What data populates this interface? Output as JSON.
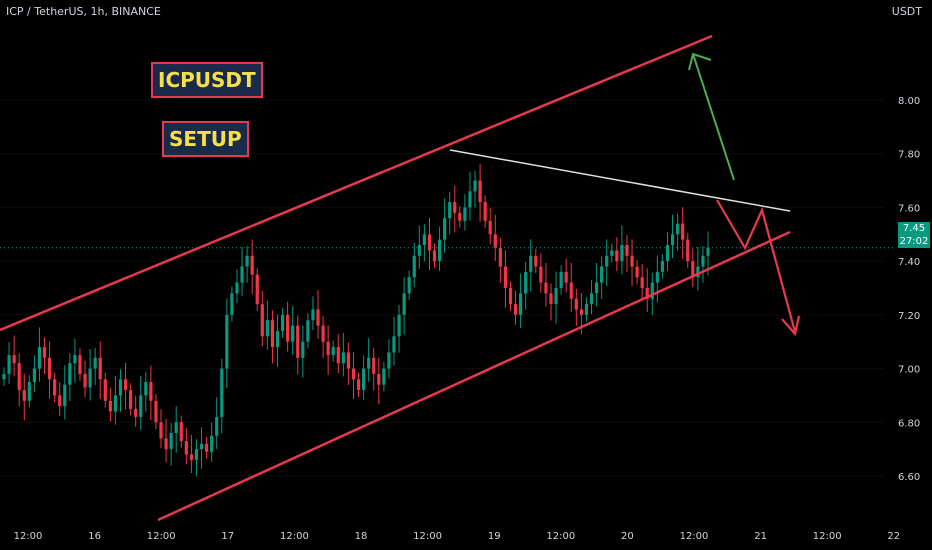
{
  "header": {
    "symbol": "ICP / TetherUS, 1h, BINANCE",
    "currency": "USDT"
  },
  "annotations": {
    "title_tag": "ICPUSDT",
    "subtitle_tag": "SETUP"
  },
  "last_price": {
    "value": "7.45",
    "countdown": "27:02"
  },
  "colors": {
    "up": "#089981",
    "down": "#f23645",
    "channel": "#e8394f",
    "resistance": "#e0e0e0",
    "arrow_up": "#4caf50",
    "arrow_down": "#e8394f"
  },
  "chart_data": {
    "type": "candlestick",
    "title": "",
    "ylim": [
      6.45,
      8.2
    ],
    "y_ticks": [
      "8.00",
      "7.80",
      "7.60",
      "7.40",
      "7.20",
      "7.00",
      "6.80",
      "6.60"
    ],
    "x_ticks": [
      "12:00",
      "16",
      "12:00",
      "17",
      "12:00",
      "18",
      "12:00",
      "19",
      "12:00",
      "20",
      "12:00",
      "21",
      "12:00",
      "22"
    ],
    "closes": [
      6.98,
      7.05,
      7.02,
      6.92,
      6.88,
      6.95,
      7.0,
      7.08,
      7.04,
      6.96,
      6.9,
      6.86,
      6.94,
      7.02,
      7.05,
      6.98,
      6.93,
      7.0,
      7.04,
      6.96,
      6.88,
      6.84,
      6.9,
      6.96,
      6.92,
      6.85,
      6.82,
      6.9,
      6.95,
      6.88,
      6.8,
      6.74,
      6.7,
      6.76,
      6.8,
      6.73,
      6.68,
      6.66,
      6.7,
      6.72,
      6.69,
      6.75,
      6.82,
      7.0,
      7.2,
      7.28,
      7.32,
      7.38,
      7.42,
      7.35,
      7.24,
      7.12,
      7.18,
      7.08,
      7.14,
      7.2,
      7.1,
      7.16,
      7.04,
      7.1,
      7.18,
      7.22,
      7.16,
      7.1,
      7.05,
      7.08,
      7.02,
      7.06,
      7.0,
      6.96,
      6.92,
      7.0,
      7.04,
      6.98,
      6.94,
      7.0,
      7.06,
      7.12,
      7.2,
      7.28,
      7.34,
      7.42,
      7.46,
      7.5,
      7.44,
      7.4,
      7.48,
      7.56,
      7.62,
      7.58,
      7.55,
      7.6,
      7.66,
      7.7,
      7.62,
      7.55,
      7.5,
      7.45,
      7.38,
      7.3,
      7.24,
      7.2,
      7.28,
      7.36,
      7.42,
      7.38,
      7.32,
      7.28,
      7.24,
      7.3,
      7.36,
      7.32,
      7.26,
      7.22,
      7.2,
      7.24,
      7.28,
      7.32,
      7.38,
      7.42,
      7.44,
      7.4,
      7.46,
      7.42,
      7.38,
      7.34,
      7.3,
      7.26,
      7.32,
      7.36,
      7.4,
      7.46,
      7.5,
      7.54,
      7.48,
      7.4,
      7.34,
      7.38,
      7.42,
      7.45
    ],
    "channel_upper": [
      [
        "start",
        7.1
      ],
      [
        "end",
        8.12
      ]
    ],
    "channel_lower": [
      [
        "start",
        6.43
      ],
      [
        "end",
        7.44
      ]
    ],
    "resistance_line": [
      [
        7.73
      ],
      [
        7.52
      ]
    ],
    "last_price": 7.45
  }
}
